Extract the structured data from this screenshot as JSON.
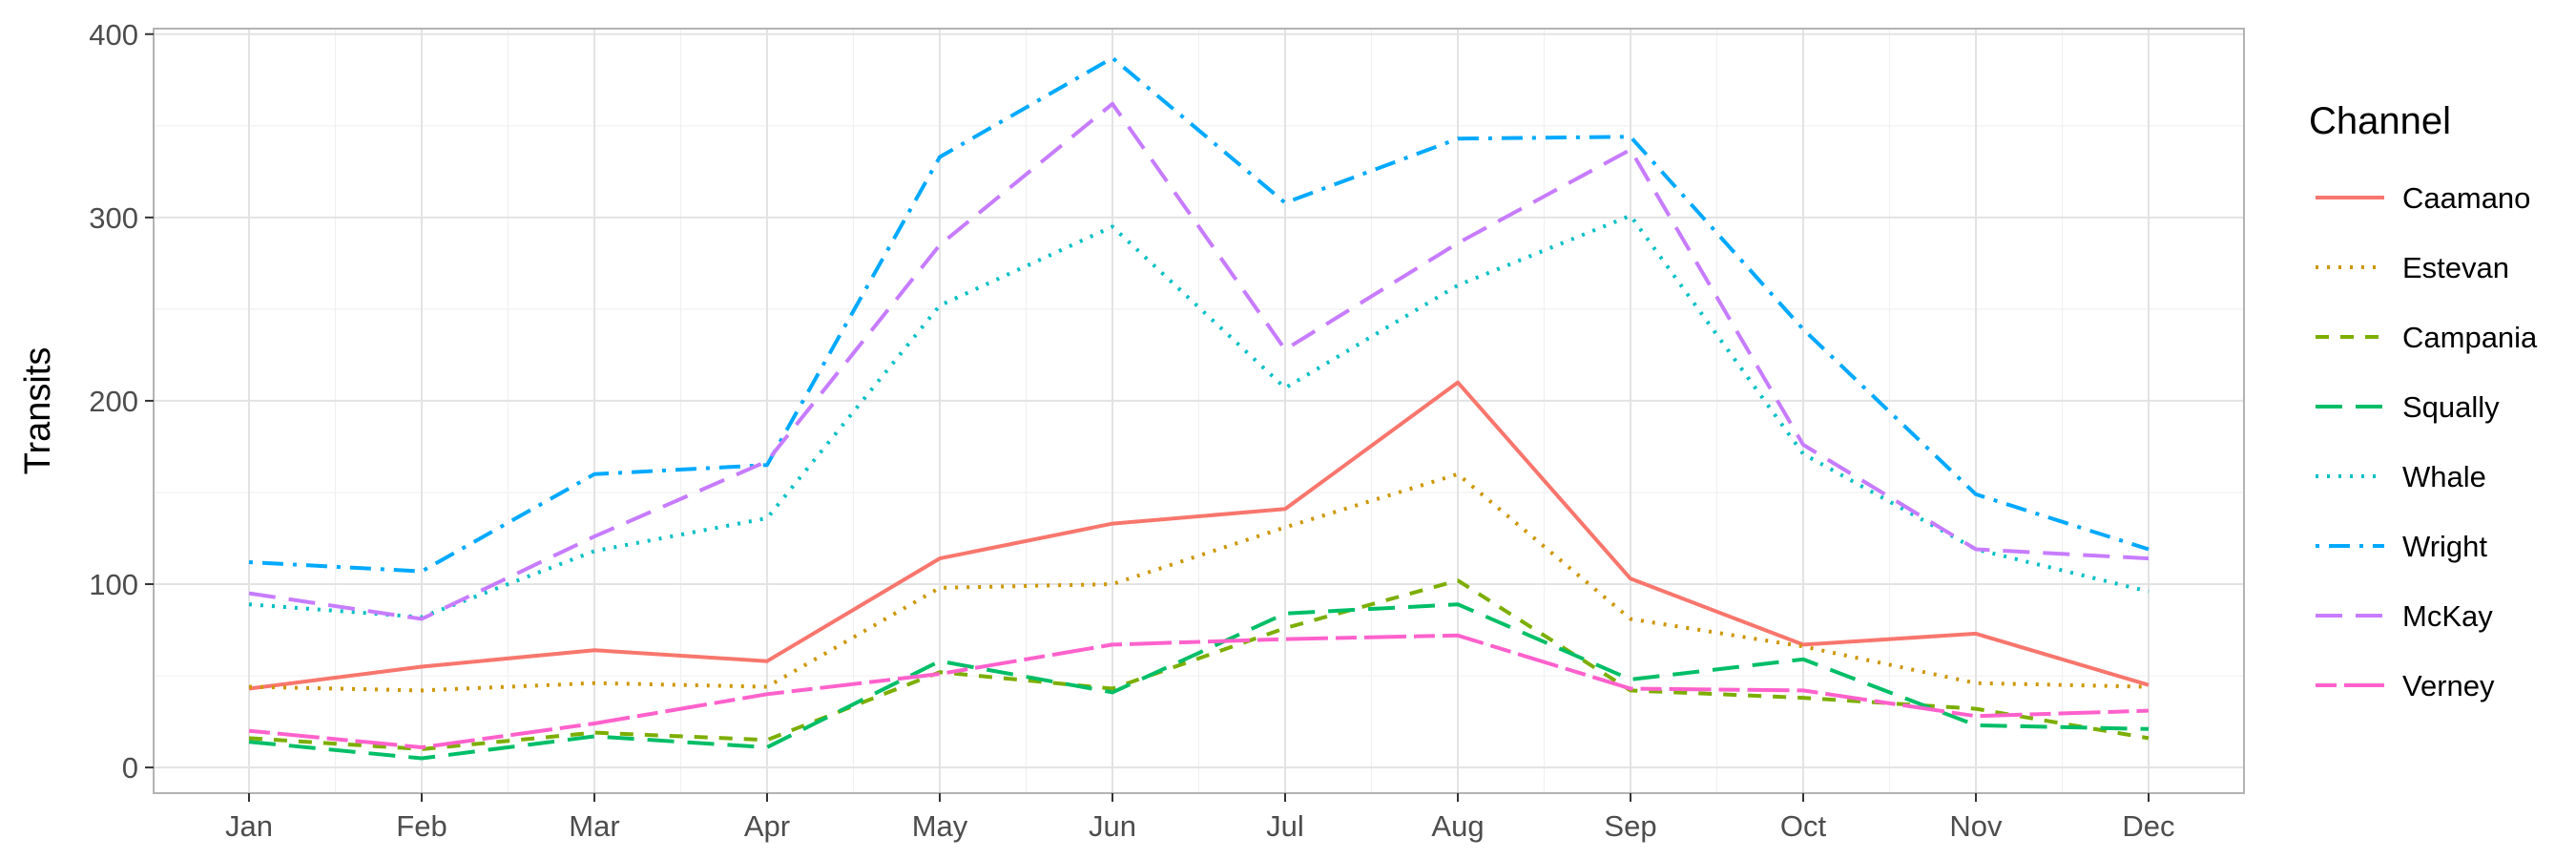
{
  "chart_data": {
    "type": "line",
    "title": "",
    "xlabel": "",
    "ylabel": "Transits",
    "categories": [
      "Jan",
      "Feb",
      "Mar",
      "Apr",
      "May",
      "Jun",
      "Jul",
      "Aug",
      "Sep",
      "Oct",
      "Nov",
      "Dec"
    ],
    "ylim": [
      -14,
      403
    ],
    "yticks": [
      0,
      100,
      200,
      300,
      400
    ],
    "grid": true,
    "legend": {
      "title": "Channel",
      "position": "right"
    },
    "series": [
      {
        "name": "Caamano",
        "color": "#F8766D",
        "linestyle": "solid",
        "values": [
          43,
          55,
          64,
          58,
          114,
          133,
          141,
          210,
          103,
          67,
          73,
          45
        ]
      },
      {
        "name": "Estevan",
        "color": "#CD9600",
        "linestyle": "dotted",
        "values": [
          44,
          42,
          46,
          44,
          98,
          100,
          131,
          160,
          81,
          66,
          46,
          44
        ]
      },
      {
        "name": "Campania",
        "color": "#7CAE00",
        "linestyle": "dashed",
        "values": [
          16,
          10,
          19,
          15,
          52,
          43,
          76,
          102,
          42,
          38,
          32,
          16
        ]
      },
      {
        "name": "Squally",
        "color": "#00BE67",
        "linestyle": "longdash",
        "values": [
          14,
          5,
          17,
          11,
          58,
          41,
          84,
          89,
          48,
          59,
          23,
          21
        ]
      },
      {
        "name": "Whale",
        "color": "#00BFC4",
        "linestyle": "dotted",
        "values": [
          89,
          82,
          118,
          136,
          252,
          295,
          207,
          263,
          301,
          171,
          119,
          96
        ]
      },
      {
        "name": "Wright",
        "color": "#00A9FF",
        "linestyle": "dotdash",
        "values": [
          112,
          107,
          160,
          165,
          333,
          387,
          308,
          343,
          344,
          239,
          149,
          119
        ]
      },
      {
        "name": "McKay",
        "color": "#C77CFF",
        "linestyle": "longdash",
        "values": [
          95,
          81,
          126,
          167,
          285,
          362,
          228,
          286,
          337,
          176,
          119,
          114
        ]
      },
      {
        "name": "Verney",
        "color": "#FF61CC",
        "linestyle": "twodash",
        "values": [
          20,
          11,
          24,
          40,
          51,
          67,
          70,
          72,
          43,
          42,
          28,
          31
        ]
      }
    ]
  }
}
